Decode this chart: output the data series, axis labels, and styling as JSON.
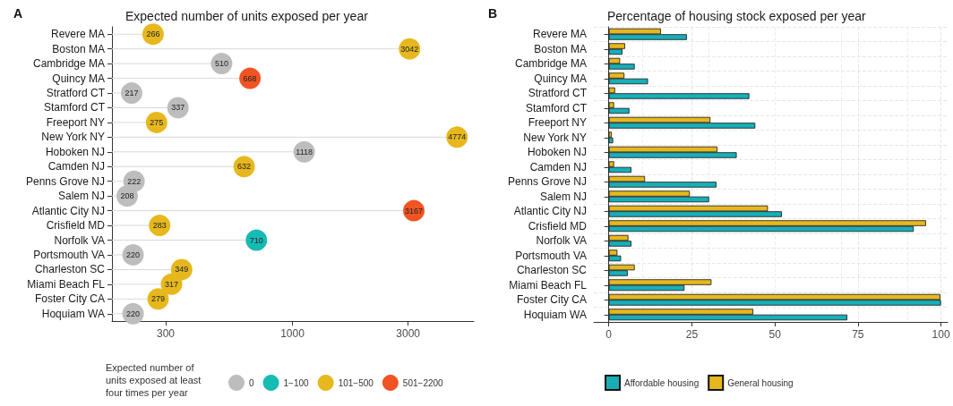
{
  "chart_data": [
    {
      "type": "lollipop",
      "orientation": "horizontal",
      "title": "Expected number of units exposed per year",
      "legend_title": "Expected number of units exposed at least four times per year",
      "annotations": [
        "A"
      ],
      "categories": [
        "Revere MA",
        "Boston MA",
        "Cambridge MA",
        "Quincy MA",
        "Stratford CT",
        "Stamford CT",
        "Freeport NY",
        "New York NY",
        "Hoboken NJ",
        "Camden NJ",
        "Penns Grove NJ",
        "Salem NJ",
        "Atlantic City NJ",
        "Crisfield MD",
        "Norfolk VA",
        "Portsmouth VA",
        "Charleston SC",
        "Miami Beach FL",
        "Foster City CA",
        "Hoquiam WA"
      ],
      "series": [
        {
          "name": "0",
          "color": "#bdbdbd",
          "values": [
            null,
            null,
            510,
            null,
            217,
            337,
            null,
            null,
            1118,
            null,
            222,
            208,
            null,
            null,
            null,
            220,
            null,
            null,
            null,
            220
          ]
        },
        {
          "name": "1−100",
          "color": "#17bbb4",
          "values": [
            null,
            null,
            null,
            null,
            null,
            null,
            null,
            null,
            null,
            null,
            null,
            null,
            null,
            null,
            710,
            null,
            null,
            null,
            null,
            null
          ]
        },
        {
          "name": "101−500",
          "color": "#e6b81e",
          "values": [
            266,
            3042,
            null,
            null,
            null,
            null,
            275,
            4774,
            null,
            632,
            null,
            null,
            null,
            283,
            null,
            null,
            349,
            317,
            279,
            null
          ]
        },
        {
          "name": "501−2200",
          "color": "#f05423",
          "values": [
            null,
            null,
            null,
            668,
            null,
            null,
            null,
            null,
            null,
            null,
            null,
            null,
            3167,
            null,
            null,
            null,
            null,
            null,
            null,
            null
          ]
        }
      ],
      "log": "x",
      "xlim": [
        180,
        5600
      ],
      "xticks": [
        300,
        1000,
        3000
      ],
      "data_labels": true,
      "legend": "bottom",
      "grid": false,
      "marker": "circle"
    },
    {
      "type": "bar",
      "orientation": "horizontal",
      "title": "Percentage of housing stock exposed per year",
      "annotations": [
        "B"
      ],
      "categories": [
        "Revere MA",
        "Boston MA",
        "Cambridge MA",
        "Quincy MA",
        "Stratford CT",
        "Stamford CT",
        "Freeport NY",
        "New York NY",
        "Hoboken NJ",
        "Camden NJ",
        "Penns Grove NJ",
        "Salem NJ",
        "Atlantic City NJ",
        "Crisfield MD",
        "Norfolk VA",
        "Portsmouth VA",
        "Charleston SC",
        "Miami Beach FL",
        "Foster City CA",
        "Hoquiam WA"
      ],
      "series": [
        {
          "name": "Affordable housing",
          "color": "#18aeb8",
          "values": [
            23.5,
            4.1,
            7.8,
            11.8,
            42.3,
            6.2,
            44.1,
            1.3,
            38.5,
            6.8,
            32.4,
            30.2,
            52.1,
            91.8,
            6.8,
            3.7,
            5.7,
            22.8,
            100,
            71.8
          ]
        },
        {
          "name": "General housing",
          "color": "#e6b81e",
          "values": [
            15.7,
            4.9,
            3.4,
            4.7,
            1.9,
            1.6,
            30.6,
            0.9,
            32.7,
            1.6,
            10.9,
            24.4,
            47.9,
            95.5,
            5.9,
            2.6,
            7.8,
            30.9,
            99.8,
            43.5
          ]
        }
      ],
      "xlim": [
        -4.5,
        102
      ],
      "xticks": [
        0,
        25,
        50,
        75,
        100
      ],
      "grid": true,
      "legend": "bottom"
    }
  ]
}
